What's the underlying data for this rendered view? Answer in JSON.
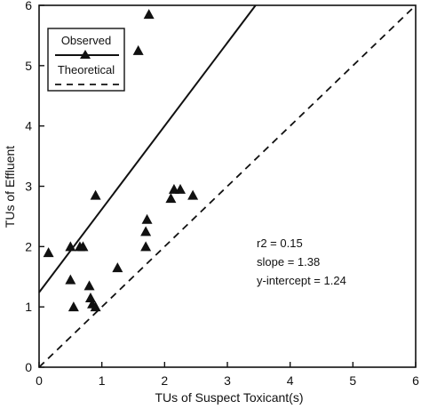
{
  "chart_data": {
    "type": "scatter",
    "xlabel": "TUs of Suspect Toxicant(s)",
    "ylabel": "TUs of Effluent",
    "xlim": [
      0,
      6
    ],
    "ylim": [
      0,
      6
    ],
    "x_ticks": [
      "0",
      "1",
      "2",
      "3",
      "4",
      "5",
      "6"
    ],
    "y_ticks": [
      "0",
      "1",
      "2",
      "3",
      "4",
      "5",
      "6"
    ],
    "grid": false,
    "legend": {
      "placement": "top-left",
      "entries": [
        {
          "label": "Observed",
          "style": "solid line with triangle marker"
        },
        {
          "label": "Theoretical",
          "style": "dashed line"
        }
      ]
    },
    "series": [
      {
        "name": "Observed",
        "marker": "triangle",
        "points": [
          [
            0.15,
            1.9
          ],
          [
            0.5,
            1.45
          ],
          [
            0.5,
            2.0
          ],
          [
            0.55,
            1.0
          ],
          [
            0.65,
            2.0
          ],
          [
            0.7,
            2.0
          ],
          [
            0.8,
            1.35
          ],
          [
            0.82,
            1.15
          ],
          [
            0.85,
            1.05
          ],
          [
            0.9,
            1.0
          ],
          [
            0.9,
            2.85
          ],
          [
            1.25,
            1.65
          ],
          [
            1.7,
            2.0
          ],
          [
            1.7,
            2.25
          ],
          [
            1.72,
            2.45
          ],
          [
            1.58,
            5.25
          ],
          [
            1.75,
            5.85
          ],
          [
            2.1,
            2.8
          ],
          [
            2.15,
            2.95
          ],
          [
            2.25,
            2.95
          ],
          [
            2.45,
            2.85
          ]
        ]
      }
    ],
    "lines": [
      {
        "name": "Observed",
        "style": "solid",
        "slope": 1.38,
        "intercept": 1.24
      },
      {
        "name": "Theoretical",
        "style": "dashed",
        "slope": 1.0,
        "intercept": 0.0
      }
    ],
    "annotations": [
      "r2 = 0.15",
      "slope = 1.38",
      "y-intercept = 1.24"
    ]
  }
}
